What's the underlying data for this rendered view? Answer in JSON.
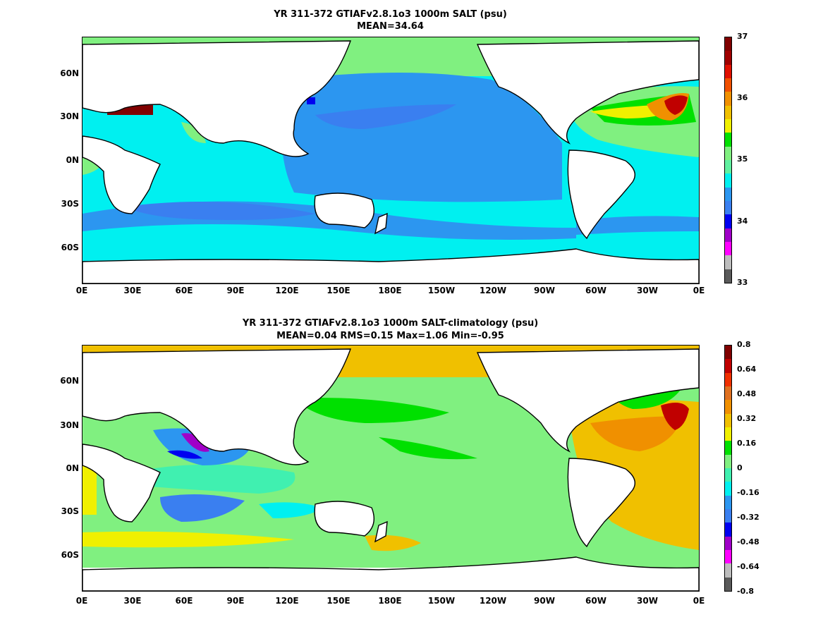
{
  "maps": [
    {
      "title_line1": "YR 311-372 GTIAFv2.8.1o3 1000m SALT (psu)",
      "title_line2": "MEAN=34.64",
      "colorbar": {
        "colors": [
          "#5a5a5a",
          "#bdbdbd",
          "#ff00ff",
          "#a000c8",
          "#0000f0",
          "#3a7ff0",
          "#2c96f0",
          "#00f0f0",
          "#60f0a0",
          "#80f080",
          "#00e000",
          "#f0f000",
          "#f0c000",
          "#f09000",
          "#f05000",
          "#e01000",
          "#a00000",
          "#800000"
        ],
        "labels": [
          "37",
          "36",
          "35",
          "34",
          "33"
        ]
      },
      "y_labels": [
        "60N",
        "30N",
        "0N",
        "30S",
        "60S"
      ],
      "x_labels": [
        "0E",
        "30E",
        "60E",
        "90E",
        "120E",
        "150E",
        "180E",
        "150W",
        "120W",
        "90W",
        "60W",
        "30W",
        "0E"
      ]
    },
    {
      "title_line1": "YR 311-372 GTIAFv2.8.1o3 1000m SALT-climatology (psu)",
      "title_line2": "MEAN=0.04   RMS=0.15   Max=1.06   Min=-0.95",
      "colorbar": {
        "colors": [
          "#5a5a5a",
          "#bdbdbd",
          "#ff00ff",
          "#a000c8",
          "#0000f0",
          "#3a7ff0",
          "#2c96f0",
          "#00f0f0",
          "#40f0b0",
          "#80f080",
          "#00e000",
          "#f0f000",
          "#f0c000",
          "#f09000",
          "#e07020",
          "#f03000",
          "#c00000",
          "#800000"
        ],
        "labels": [
          "0.8",
          "0.64",
          "0.48",
          "0.32",
          "0.16",
          "0",
          "-0.16",
          "-0.32",
          "-0.48",
          "-0.64",
          "-0.8"
        ]
      },
      "y_labels": [
        "60N",
        "30N",
        "0N",
        "30S",
        "60S"
      ],
      "x_labels": [
        "0E",
        "30E",
        "60E",
        "90E",
        "120E",
        "150E",
        "180E",
        "150W",
        "120W",
        "90W",
        "60W",
        "30W",
        "0E"
      ]
    }
  ]
}
